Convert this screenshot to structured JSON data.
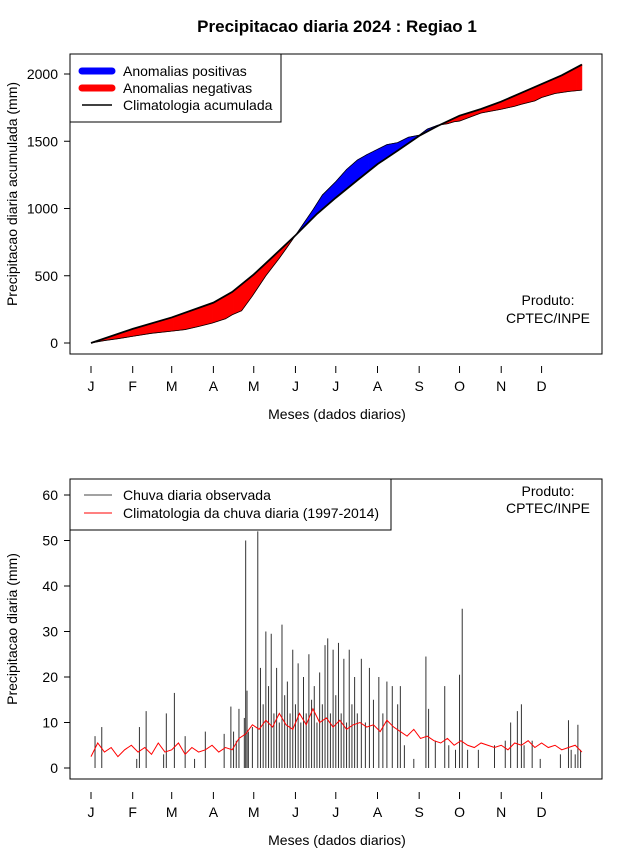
{
  "title": "Precipitacao diaria 2024 : Regiao 1",
  "chart_data": [
    {
      "type": "area",
      "ylabel": "Precipitacao diaria acumulada (mm)",
      "xlabel": "Meses (dados diarios)",
      "ylim": [
        0,
        2000
      ],
      "yticks": [
        0,
        500,
        1000,
        1500,
        2000
      ],
      "xtick_labels": [
        "J",
        "F",
        "M",
        "A",
        "M",
        "J",
        "J",
        "A",
        "S",
        "O",
        "N",
        "D"
      ],
      "xtick_days": [
        0,
        31,
        60,
        91,
        121,
        152,
        182,
        213,
        244,
        274,
        305,
        335
      ],
      "legend": {
        "position": "top-left",
        "entries": [
          "Anomalias positivas",
          "Anomalias negativas",
          "Climatologia acumulada"
        ],
        "colors": [
          "#0000ff",
          "#ff0000",
          "#000000"
        ]
      },
      "annotation": [
        "Produto:",
        "CPTEC/INPE"
      ],
      "climatology_cumulative": {
        "day": [
          0,
          31,
          60,
          91,
          105,
          121,
          135,
          152,
          168,
          182,
          198,
          213,
          228,
          244,
          258,
          274,
          290,
          305,
          320,
          335,
          350,
          365
        ],
        "mm": [
          0,
          105,
          190,
          300,
          380,
          510,
          640,
          800,
          960,
          1080,
          1210,
          1330,
          1430,
          1540,
          1615,
          1690,
          1740,
          1795,
          1860,
          1925,
          1990,
          2070
        ]
      },
      "observed_cumulative": {
        "day": [
          0,
          10,
          20,
          30,
          45,
          60,
          70,
          80,
          90,
          100,
          105,
          112,
          120,
          130,
          140,
          145,
          152,
          165,
          172,
          182,
          190,
          198,
          205,
          213,
          220,
          228,
          236,
          244,
          250,
          258,
          265,
          270,
          274,
          282,
          290,
          298,
          305,
          315,
          320,
          330,
          335,
          345,
          355,
          365
        ],
        "mm": [
          0,
          18,
          32,
          48,
          72,
          88,
          100,
          123,
          148,
          180,
          210,
          240,
          350,
          500,
          630,
          700,
          800,
          990,
          1100,
          1200,
          1290,
          1360,
          1400,
          1440,
          1475,
          1490,
          1530,
          1545,
          1590,
          1620,
          1630,
          1645,
          1650,
          1680,
          1710,
          1725,
          1738,
          1760,
          1775,
          1800,
          1825,
          1855,
          1870,
          1880
        ]
      }
    },
    {
      "type": "bar",
      "ylabel": "Precipitacao diaria (mm)",
      "xlabel": "Meses (dados diarios)",
      "ylim": [
        0,
        60
      ],
      "yticks": [
        0,
        10,
        20,
        30,
        40,
        50,
        60
      ],
      "xtick_labels": [
        "J",
        "F",
        "M",
        "A",
        "M",
        "J",
        "J",
        "A",
        "S",
        "O",
        "N",
        "D"
      ],
      "xtick_days": [
        0,
        31,
        60,
        91,
        121,
        152,
        182,
        213,
        244,
        274,
        305,
        335
      ],
      "legend": {
        "position": "top-left",
        "entries": [
          "Chuva diaria observada",
          "Climatologia da chuva diaria (1997-2014)"
        ],
        "colors": [
          "#000000",
          "#ff0000"
        ]
      },
      "annotation": [
        "Produto:",
        "CPTEC/INPE"
      ],
      "observed_daily_peaks": [
        {
          "day": 3,
          "mm": 7
        },
        {
          "day": 8,
          "mm": 9
        },
        {
          "day": 34,
          "mm": 2
        },
        {
          "day": 36,
          "mm": 9
        },
        {
          "day": 41,
          "mm": 12.5
        },
        {
          "day": 54,
          "mm": 3
        },
        {
          "day": 56,
          "mm": 12
        },
        {
          "day": 62,
          "mm": 16.5
        },
        {
          "day": 70,
          "mm": 7
        },
        {
          "day": 77,
          "mm": 2
        },
        {
          "day": 85,
          "mm": 8
        },
        {
          "day": 99,
          "mm": 7.5
        },
        {
          "day": 104,
          "mm": 13.5
        },
        {
          "day": 106,
          "mm": 8
        },
        {
          "day": 108,
          "mm": 6
        },
        {
          "day": 110,
          "mm": 13
        },
        {
          "day": 114,
          "mm": 11
        },
        {
          "day": 115,
          "mm": 50
        },
        {
          "day": 116,
          "mm": 17
        },
        {
          "day": 117,
          "mm": 8
        },
        {
          "day": 120,
          "mm": 9
        },
        {
          "day": 124,
          "mm": 52
        },
        {
          "day": 126,
          "mm": 22
        },
        {
          "day": 128,
          "mm": 14
        },
        {
          "day": 130,
          "mm": 30
        },
        {
          "day": 132,
          "mm": 18
        },
        {
          "day": 134,
          "mm": 29.5
        },
        {
          "day": 136,
          "mm": 12
        },
        {
          "day": 138,
          "mm": 22
        },
        {
          "day": 140,
          "mm": 10
        },
        {
          "day": 142,
          "mm": 31.5
        },
        {
          "day": 144,
          "mm": 16
        },
        {
          "day": 146,
          "mm": 19
        },
        {
          "day": 148,
          "mm": 12
        },
        {
          "day": 150,
          "mm": 26
        },
        {
          "day": 152,
          "mm": 14
        },
        {
          "day": 154,
          "mm": 23
        },
        {
          "day": 156,
          "mm": 10
        },
        {
          "day": 158,
          "mm": 20
        },
        {
          "day": 160,
          "mm": 12
        },
        {
          "day": 162,
          "mm": 25
        },
        {
          "day": 164,
          "mm": 15
        },
        {
          "day": 166,
          "mm": 18
        },
        {
          "day": 168,
          "mm": 10
        },
        {
          "day": 170,
          "mm": 21
        },
        {
          "day": 172,
          "mm": 14
        },
        {
          "day": 174,
          "mm": 27
        },
        {
          "day": 176,
          "mm": 28.5
        },
        {
          "day": 178,
          "mm": 12
        },
        {
          "day": 180,
          "mm": 26
        },
        {
          "day": 182,
          "mm": 16
        },
        {
          "day": 184,
          "mm": 27.5
        },
        {
          "day": 186,
          "mm": 12
        },
        {
          "day": 188,
          "mm": 24
        },
        {
          "day": 190,
          "mm": 10
        },
        {
          "day": 192,
          "mm": 26
        },
        {
          "day": 194,
          "mm": 14
        },
        {
          "day": 196,
          "mm": 20
        },
        {
          "day": 198,
          "mm": 12
        },
        {
          "day": 201,
          "mm": 24
        },
        {
          "day": 204,
          "mm": 10
        },
        {
          "day": 207,
          "mm": 22
        },
        {
          "day": 210,
          "mm": 15
        },
        {
          "day": 214,
          "mm": 20
        },
        {
          "day": 217,
          "mm": 12
        },
        {
          "day": 220,
          "mm": 19
        },
        {
          "day": 224,
          "mm": 18
        },
        {
          "day": 228,
          "mm": 14
        },
        {
          "day": 230,
          "mm": 18
        },
        {
          "day": 233,
          "mm": 5
        },
        {
          "day": 240,
          "mm": 2
        },
        {
          "day": 249,
          "mm": 24.5
        },
        {
          "day": 251,
          "mm": 13
        },
        {
          "day": 256,
          "mm": 6
        },
        {
          "day": 263,
          "mm": 18
        },
        {
          "day": 266,
          "mm": 5
        },
        {
          "day": 271,
          "mm": 4
        },
        {
          "day": 274,
          "mm": 20.5
        },
        {
          "day": 276,
          "mm": 35
        },
        {
          "day": 280,
          "mm": 4
        },
        {
          "day": 288,
          "mm": 4
        },
        {
          "day": 300,
          "mm": 5
        },
        {
          "day": 308,
          "mm": 6
        },
        {
          "day": 312,
          "mm": 10
        },
        {
          "day": 317,
          "mm": 12.5
        },
        {
          "day": 320,
          "mm": 14
        },
        {
          "day": 322,
          "mm": 5
        },
        {
          "day": 328,
          "mm": 6
        },
        {
          "day": 334,
          "mm": 2
        },
        {
          "day": 349,
          "mm": 3
        },
        {
          "day": 355,
          "mm": 10.5
        },
        {
          "day": 357,
          "mm": 4
        },
        {
          "day": 360,
          "mm": 3
        },
        {
          "day": 362,
          "mm": 9.5
        },
        {
          "day": 364,
          "mm": 4
        }
      ],
      "climatology_daily": {
        "day": [
          0,
          5,
          10,
          15,
          20,
          25,
          30,
          35,
          40,
          45,
          50,
          55,
          60,
          65,
          70,
          75,
          80,
          85,
          90,
          95,
          100,
          105,
          110,
          115,
          120,
          125,
          130,
          135,
          140,
          145,
          150,
          155,
          160,
          165,
          170,
          175,
          180,
          185,
          190,
          195,
          200,
          205,
          210,
          215,
          220,
          225,
          230,
          235,
          240,
          245,
          250,
          255,
          260,
          265,
          270,
          275,
          280,
          285,
          290,
          295,
          300,
          305,
          310,
          315,
          320,
          325,
          330,
          335,
          340,
          345,
          350,
          355,
          360,
          365
        ],
        "mm": [
          2.5,
          5.5,
          3.5,
          4.5,
          2.5,
          4.0,
          5.0,
          3.5,
          4.5,
          3.0,
          5.5,
          3.5,
          4.0,
          5.5,
          3.0,
          4.5,
          3.5,
          4.0,
          5.0,
          3.5,
          4.5,
          4.0,
          6.5,
          7.5,
          9.5,
          8.5,
          10.5,
          9.0,
          12.0,
          9.5,
          8.5,
          12.0,
          9.5,
          13.0,
          10.0,
          11.0,
          9.0,
          10.5,
          8.5,
          9.5,
          10.0,
          9.0,
          9.5,
          8.0,
          10.5,
          9.0,
          8.0,
          7.0,
          8.5,
          6.5,
          7.0,
          6.0,
          5.5,
          6.5,
          5.0,
          6.0,
          5.0,
          4.5,
          5.5,
          5.0,
          4.5,
          5.0,
          4.0,
          5.5,
          5.0,
          6.0,
          4.5,
          5.5,
          4.5,
          5.0,
          4.0,
          4.5,
          5.0,
          3.5
        ]
      }
    }
  ]
}
